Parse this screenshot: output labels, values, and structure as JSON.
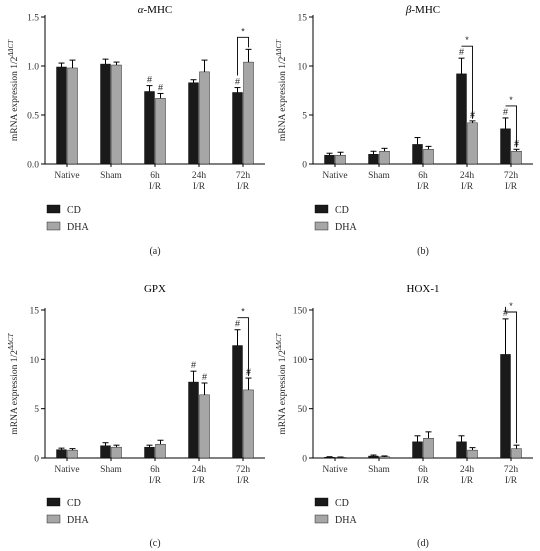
{
  "colors": {
    "CD": "#1a1a1a",
    "DHA": "#a6a6a6"
  },
  "chart_data": [
    {
      "type": "bar",
      "title_prefix": "α",
      "title_suffix": "-MHC",
      "ylabel": "mRNA expression 1/2",
      "ylabel_sup": "ΔΔCT",
      "ylim": [
        0,
        1.5
      ],
      "yticks": [
        "0.0",
        "0.5",
        "1.0",
        "1.5"
      ],
      "categories": [
        [
          "Native"
        ],
        [
          "Sham"
        ],
        [
          "6h",
          "I/R"
        ],
        [
          "24h",
          "I/R"
        ],
        [
          "72h",
          "I/R"
        ]
      ],
      "series": [
        {
          "name": "CD",
          "values": [
            0.99,
            1.02,
            0.74,
            0.83,
            0.73
          ],
          "errors": [
            0.04,
            0.05,
            0.06,
            0.03,
            0.05
          ]
        },
        {
          "name": "DHA",
          "values": [
            0.98,
            1.01,
            0.67,
            0.94,
            1.04
          ],
          "errors": [
            0.08,
            0.03,
            0.05,
            0.12,
            0.13
          ]
        }
      ],
      "hash_marks": [
        [
          2,
          0
        ],
        [
          2,
          1
        ],
        [
          4,
          0
        ]
      ],
      "significance": [
        {
          "group": 4,
          "label": "*"
        }
      ],
      "caption": "(a)"
    },
    {
      "type": "bar",
      "title_prefix": "β",
      "title_suffix": "-MHC",
      "ylabel": "mRNA expression 1/2",
      "ylabel_sup": "ΔΔCT",
      "ylim": [
        0,
        15
      ],
      "yticks": [
        "0",
        "5",
        "10",
        "15"
      ],
      "categories": [
        [
          "Native"
        ],
        [
          "Sham"
        ],
        [
          "6h",
          "I/R"
        ],
        [
          "24h",
          "I/R"
        ],
        [
          "72h",
          "I/R"
        ]
      ],
      "series": [
        {
          "name": "CD",
          "values": [
            0.9,
            1.0,
            2.0,
            9.2,
            3.6
          ],
          "errors": [
            0.2,
            0.3,
            0.7,
            1.6,
            1.1
          ]
        },
        {
          "name": "DHA",
          "values": [
            0.9,
            1.3,
            1.5,
            4.2,
            1.3
          ],
          "errors": [
            0.3,
            0.3,
            0.3,
            0.2,
            0.2
          ]
        }
      ],
      "hash_marks": [
        [
          3,
          0
        ],
        [
          3,
          1
        ],
        [
          4,
          0
        ],
        [
          4,
          1
        ]
      ],
      "significance": [
        {
          "group": 3,
          "label": "*"
        },
        {
          "group": 4,
          "label": "*"
        }
      ],
      "caption": "(b)"
    },
    {
      "type": "bar",
      "title_prefix": "",
      "title_suffix": "GPX",
      "ylabel": "mRNA expression 1/2",
      "ylabel_sup": "ΔΔCT",
      "ylim": [
        0,
        15
      ],
      "yticks": [
        "0",
        "5",
        "10",
        "15"
      ],
      "categories": [
        [
          "Native"
        ],
        [
          "Sham"
        ],
        [
          "6h",
          "I/R"
        ],
        [
          "24h",
          "I/R"
        ],
        [
          "72h",
          "I/R"
        ]
      ],
      "series": [
        {
          "name": "CD",
          "values": [
            0.85,
            1.25,
            1.1,
            7.7,
            11.4
          ],
          "errors": [
            0.15,
            0.3,
            0.2,
            1.1,
            1.6
          ]
        },
        {
          "name": "DHA",
          "values": [
            0.8,
            1.1,
            1.4,
            6.4,
            6.9
          ],
          "errors": [
            0.15,
            0.2,
            0.4,
            1.2,
            1.2
          ]
        }
      ],
      "hash_marks": [
        [
          3,
          0
        ],
        [
          3,
          1
        ],
        [
          4,
          0
        ],
        [
          4,
          1
        ]
      ],
      "significance": [
        {
          "group": 4,
          "label": "*"
        }
      ],
      "caption": "(c)"
    },
    {
      "type": "bar",
      "title_prefix": "",
      "title_suffix": "HOX-1",
      "ylabel": "mRNA expression 1/2",
      "ylabel_sup": "ΔΔCT",
      "ylim": [
        0,
        150
      ],
      "yticks": [
        "0",
        "50",
        "100",
        "150"
      ],
      "categories": [
        [
          "Native"
        ],
        [
          "Sham"
        ],
        [
          "6h",
          "I/R"
        ],
        [
          "24h",
          "I/R"
        ],
        [
          "72h",
          "I/R"
        ]
      ],
      "series": [
        {
          "name": "CD",
          "values": [
            0.8,
            2.0,
            16.5,
            16.5,
            105
          ],
          "errors": [
            0.5,
            1.0,
            6.0,
            6.0,
            36
          ]
        },
        {
          "name": "DHA",
          "values": [
            0.6,
            1.3,
            20,
            8,
            9.5
          ],
          "errors": [
            0.4,
            0.8,
            6.5,
            2.5,
            3.5
          ]
        }
      ],
      "hash_marks": [
        [
          4,
          0
        ]
      ],
      "significance": [
        {
          "group": 4,
          "label": "*"
        }
      ],
      "caption": "(d)"
    }
  ]
}
